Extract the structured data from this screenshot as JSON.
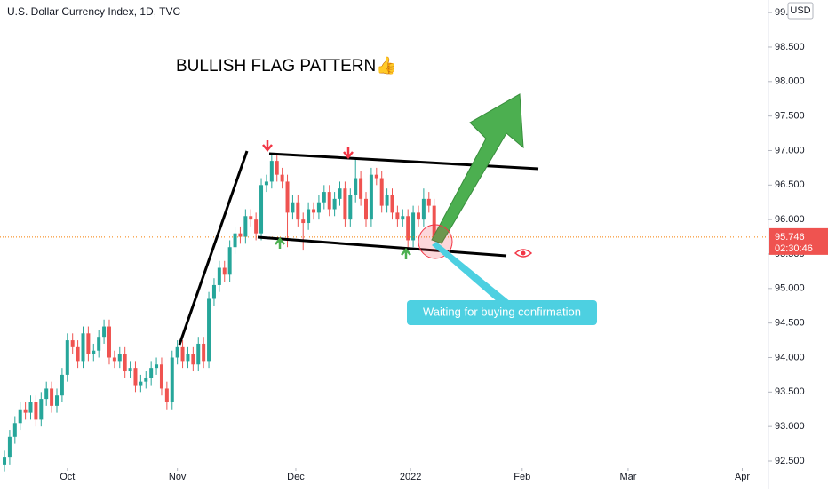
{
  "chart_data": {
    "type": "candlestick",
    "title": "U.S. Dollar Currency Index, 1D, TVC",
    "annotation": "BULLISH FLAG PATTERN👍",
    "callout": "Waiting for buying confirmation",
    "currency": "USD",
    "last_price": 95.746,
    "last_price_label": "95.746",
    "countdown": "02:30:46",
    "up_color": "#26a69a",
    "down_color": "#ef5350",
    "x": [
      0,
      1,
      2,
      3,
      4,
      5,
      6,
      7,
      8,
      9,
      10,
      11,
      12,
      13,
      14,
      15,
      16,
      17,
      18,
      19,
      20,
      21,
      22,
      23,
      24,
      25,
      26,
      27,
      28,
      29,
      30,
      31,
      32,
      33,
      34,
      35,
      36,
      37,
      38,
      39,
      40,
      41,
      42,
      43,
      44,
      45,
      46,
      47,
      48,
      49,
      50,
      51,
      52,
      53,
      54,
      55,
      56,
      57,
      58,
      59,
      60,
      61,
      62,
      63,
      64,
      65,
      66,
      67,
      68,
      69,
      70,
      71,
      72,
      73,
      74,
      75,
      76,
      77,
      78,
      79,
      80,
      81,
      82
    ],
    "open": [
      92.45,
      92.55,
      92.85,
      93.05,
      93.25,
      93.2,
      93.35,
      93.1,
      93.4,
      93.55,
      93.3,
      93.45,
      93.75,
      94.25,
      94.15,
      93.95,
      94.35,
      94.05,
      94.1,
      94.3,
      94.45,
      94.0,
      93.95,
      94.05,
      93.8,
      93.85,
      93.6,
      93.65,
      93.7,
      93.85,
      93.9,
      93.55,
      93.35,
      94.0,
      94.15,
      93.95,
      94.05,
      93.9,
      94.2,
      93.95,
      94.85,
      95.05,
      95.3,
      95.2,
      95.6,
      95.8,
      95.75,
      96.05,
      96.0,
      95.8,
      96.5,
      96.55,
      96.85,
      96.65,
      96.55,
      96.1,
      96.25,
      96.0,
      95.95,
      96.15,
      96.1,
      96.25,
      96.4,
      96.15,
      96.3,
      96.45,
      96.0,
      96.35,
      96.6,
      96.3,
      96.0,
      96.65,
      96.6,
      96.2,
      96.35,
      96.1,
      96.0,
      96.05,
      95.7,
      96.1,
      96.0,
      96.3,
      96.2
    ],
    "high": [
      92.65,
      92.95,
      93.15,
      93.35,
      93.35,
      93.45,
      93.45,
      93.5,
      93.65,
      93.65,
      93.55,
      93.85,
      94.35,
      94.35,
      94.25,
      94.45,
      94.45,
      94.2,
      94.4,
      94.55,
      94.55,
      94.1,
      94.15,
      94.15,
      93.95,
      93.95,
      93.75,
      93.8,
      93.95,
      94.0,
      94.0,
      93.65,
      94.1,
      94.25,
      94.25,
      94.15,
      94.15,
      94.3,
      94.3,
      94.95,
      95.15,
      95.4,
      95.4,
      95.7,
      95.9,
      95.9,
      96.15,
      96.15,
      96.1,
      96.6,
      96.65,
      96.95,
      96.95,
      96.75,
      96.65,
      96.35,
      96.35,
      96.1,
      96.25,
      96.25,
      96.35,
      96.5,
      96.5,
      96.4,
      96.55,
      96.55,
      96.45,
      96.9,
      96.7,
      96.4,
      96.75,
      96.75,
      96.7,
      96.45,
      96.45,
      96.2,
      96.15,
      96.15,
      96.2,
      96.2,
      96.45,
      96.4,
      96.3
    ],
    "low": [
      92.35,
      92.45,
      92.75,
      92.95,
      93.1,
      93.1,
      93.0,
      93.0,
      93.3,
      93.2,
      93.2,
      93.35,
      93.65,
      94.05,
      93.85,
      93.85,
      93.95,
      93.95,
      94.0,
      94.2,
      93.9,
      93.85,
      93.85,
      93.7,
      93.7,
      93.5,
      93.5,
      93.55,
      93.6,
      93.75,
      93.45,
      93.25,
      93.25,
      93.9,
      93.85,
      93.85,
      93.8,
      93.8,
      93.85,
      93.85,
      94.75,
      94.95,
      95.1,
      95.1,
      95.5,
      95.65,
      95.65,
      95.9,
      95.7,
      95.7,
      96.4,
      96.45,
      96.55,
      96.45,
      95.6,
      96.0,
      95.9,
      95.55,
      95.85,
      96.0,
      96.0,
      96.15,
      96.05,
      96.05,
      96.2,
      95.9,
      95.9,
      96.25,
      96.2,
      95.9,
      95.9,
      96.5,
      96.1,
      96.1,
      96.0,
      95.9,
      95.9,
      95.6,
      95.6,
      95.9,
      95.9,
      96.1,
      95.65
    ],
    "close": [
      92.55,
      92.85,
      93.05,
      93.25,
      93.2,
      93.35,
      93.1,
      93.4,
      93.55,
      93.3,
      93.45,
      93.75,
      94.25,
      94.15,
      93.95,
      94.35,
      94.05,
      94.1,
      94.3,
      94.45,
      94.0,
      93.95,
      94.05,
      93.8,
      93.85,
      93.6,
      93.65,
      93.7,
      93.85,
      93.9,
      93.55,
      93.35,
      94.0,
      94.15,
      93.95,
      94.05,
      93.9,
      94.2,
      93.95,
      94.85,
      95.05,
      95.3,
      95.2,
      95.6,
      95.8,
      95.75,
      96.05,
      96.0,
      95.8,
      96.5,
      96.55,
      96.85,
      96.65,
      96.55,
      96.1,
      96.25,
      96.0,
      95.95,
      96.15,
      96.1,
      96.25,
      96.4,
      96.15,
      96.3,
      96.45,
      96.0,
      96.35,
      96.6,
      96.3,
      96.0,
      96.65,
      96.6,
      96.2,
      96.35,
      96.1,
      96.0,
      96.05,
      95.7,
      96.1,
      96.0,
      96.3,
      96.2,
      95.75
    ],
    "xlim": [
      -0.85,
      145.8
    ],
    "xticks": [
      {
        "value": 12,
        "label": "Oct"
      },
      {
        "value": 33,
        "label": "Nov"
      },
      {
        "value": 55.6,
        "label": "Dec"
      },
      {
        "value": 77.5,
        "label": "2022"
      },
      {
        "value": 98.8,
        "label": "Feb"
      },
      {
        "value": 119,
        "label": "Mar"
      },
      {
        "value": 140.8,
        "label": "Apr"
      }
    ],
    "ylim": [
      92.397,
      99.182
    ],
    "yticks": [
      {
        "value": 92.5,
        "label": "92.500"
      },
      {
        "value": 93,
        "label": "93.000"
      },
      {
        "value": 93.5,
        "label": "93.500"
      },
      {
        "value": 94,
        "label": "94.000"
      },
      {
        "value": 94.5,
        "label": "94.500"
      },
      {
        "value": 95,
        "label": "95.000"
      },
      {
        "value": 95.5,
        "label": "95.500"
      },
      {
        "value": 96,
        "label": "96.000"
      },
      {
        "value": 96.5,
        "label": "96.500"
      },
      {
        "value": 97,
        "label": "97.000"
      },
      {
        "value": 97.5,
        "label": "97.500"
      },
      {
        "value": 98,
        "label": "98.000"
      },
      {
        "value": 98.5,
        "label": "98.500"
      },
      {
        "value": 99,
        "label": "99.000"
      }
    ]
  }
}
